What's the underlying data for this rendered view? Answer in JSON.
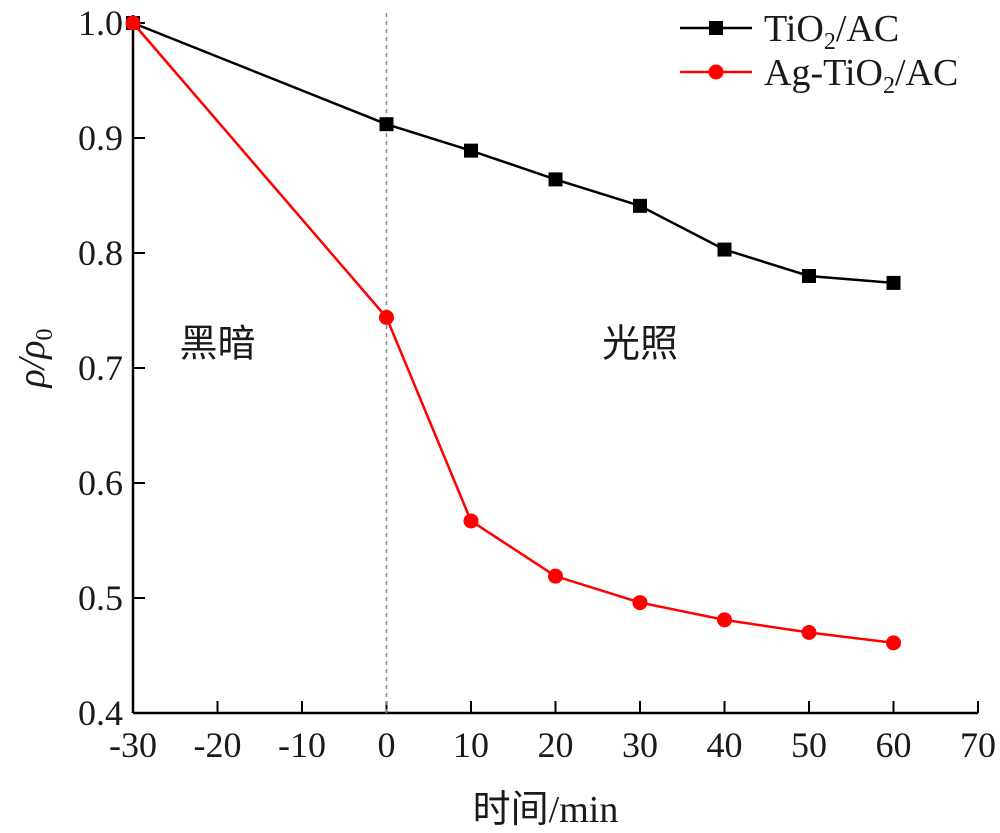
{
  "chart_data": {
    "type": "line",
    "xlabel": "时间/min",
    "ylabel": "ρ/ρ",
    "ylabel_sub": "0",
    "xlim": [
      -30,
      70
    ],
    "ylim": [
      0.4,
      1.0
    ],
    "x_ticks": [
      -30,
      -20,
      -10,
      0,
      10,
      20,
      30,
      40,
      50,
      60,
      70
    ],
    "y_ticks": [
      0.4,
      0.5,
      0.6,
      0.7,
      0.8,
      0.9,
      1.0
    ],
    "x_tick_labels": [
      "-30",
      "-20",
      "-10",
      "0",
      "10",
      "20",
      "30",
      "40",
      "50",
      "60",
      "70"
    ],
    "y_tick_labels": [
      "0.4",
      "0.5",
      "0.6",
      "0.7",
      "0.8",
      "0.9",
      "1.0"
    ],
    "grid": false,
    "legend_position": "top-right",
    "divider_x": 0,
    "annotations": [
      {
        "text": "黑暗",
        "x": -20,
        "y": 0.71
      },
      {
        "text": "光照",
        "x": 30,
        "y": 0.71
      }
    ],
    "series": [
      {
        "name": "TiO2/AC",
        "name_parts": [
          "TiO",
          "2",
          "/AC"
        ],
        "color": "#000000",
        "marker": "square",
        "x": [
          -30,
          0,
          10,
          20,
          30,
          40,
          50,
          60
        ],
        "y": [
          1.0,
          0.912,
          0.889,
          0.864,
          0.841,
          0.803,
          0.78,
          0.774
        ]
      },
      {
        "name": "Ag-TiO2/AC",
        "name_parts": [
          "Ag-TiO",
          "2",
          "/AC"
        ],
        "color": "#ff0000",
        "marker": "circle",
        "x": [
          -30,
          0,
          10,
          20,
          30,
          40,
          50,
          60
        ],
        "y": [
          1.0,
          0.744,
          0.567,
          0.519,
          0.496,
          0.481,
          0.47,
          0.461
        ]
      }
    ]
  }
}
